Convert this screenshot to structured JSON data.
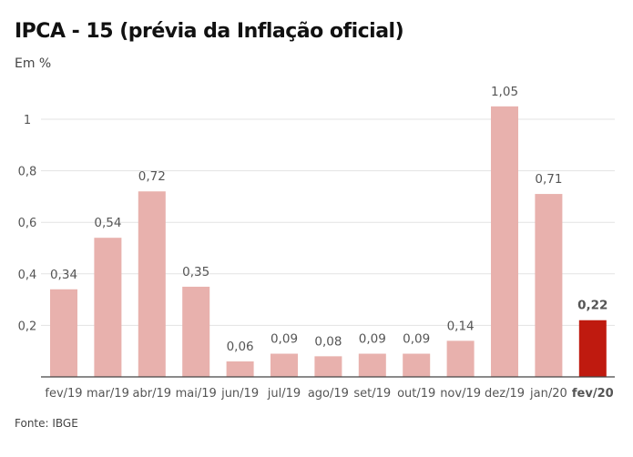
{
  "chart_data": {
    "type": "bar",
    "title": "IPCA - 15 (prévia da Inflação oficial)",
    "subtitle": "Em %",
    "source": "Fonte: IBGE",
    "categories": [
      "fev/19",
      "mar/19",
      "abr/19",
      "mai/19",
      "jun/19",
      "jul/19",
      "ago/19",
      "set/19",
      "out/19",
      "nov/19",
      "dez/19",
      "jan/20",
      "fev/20"
    ],
    "values": [
      0.34,
      0.54,
      0.72,
      0.35,
      0.06,
      0.09,
      0.08,
      0.09,
      0.09,
      0.14,
      1.05,
      0.71,
      0.22
    ],
    "value_labels": [
      "0,34",
      "0,54",
      "0,72",
      "0,35",
      "0,06",
      "0,09",
      "0,08",
      "0,09",
      "0,09",
      "0,14",
      "1,05",
      "0,71",
      "0,22"
    ],
    "highlight_index": 12,
    "yticks": [
      0.2,
      0.4,
      0.6,
      0.8,
      1
    ],
    "ytick_labels": [
      "0,2",
      "0,4",
      "0,6",
      "0,8",
      "1"
    ],
    "ylim": [
      0,
      1.1
    ],
    "grid": true,
    "colors": {
      "bar": "#e8b1ad",
      "highlight": "#bf1a0f",
      "grid": "#e3e3e3",
      "axis": "#444444"
    }
  }
}
